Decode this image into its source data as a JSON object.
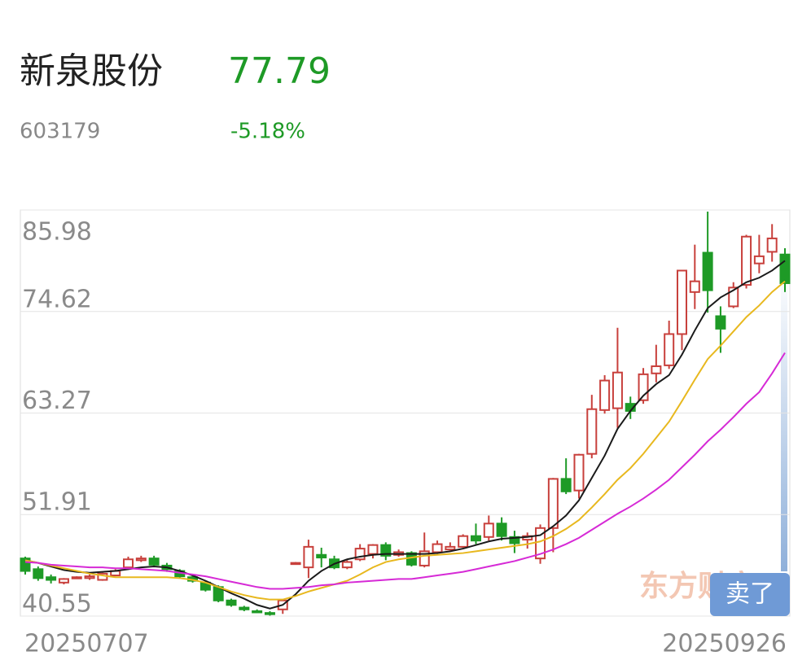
{
  "header": {
    "name": "新泉股份",
    "price": "77.79",
    "code": "603179",
    "change": "-5.18%"
  },
  "watermark": "东方财富",
  "sell_button": "卖了",
  "chart_data": {
    "type": "candlestick",
    "categories": [
      "20250707",
      null,
      null,
      null,
      null,
      null,
      null,
      null,
      null,
      null,
      null,
      null,
      null,
      null,
      null,
      null,
      null,
      null,
      null,
      null,
      null,
      null,
      null,
      null,
      null,
      null,
      null,
      null,
      null,
      null,
      null,
      null,
      null,
      null,
      null,
      null,
      null,
      null,
      null,
      null,
      null,
      null,
      null,
      null,
      null,
      null,
      null,
      null,
      null,
      null,
      null,
      null,
      null,
      null,
      null,
      null,
      null,
      null,
      null,
      "20250926"
    ],
    "open": [
      47.0,
      45.8,
      44.9,
      44.3,
      44.8,
      44.8,
      44.6,
      45.1,
      46.0,
      46.8,
      47.0,
      46.2,
      45.6,
      44.9,
      44.3,
      43.8,
      42.3,
      41.5,
      41.1,
      40.9,
      41.3,
      46.4,
      46.0,
      47.4,
      46.9,
      46.0,
      46.9,
      47.5,
      48.5,
      47.4,
      47.6,
      46.2,
      47.7,
      48.0,
      48.3,
      49.5,
      49.4,
      50.9,
      49.4,
      49.1,
      47.0,
      50.4,
      55.9,
      54.6,
      58.7,
      63.6,
      63.8,
      64.3,
      64.7,
      67.7,
      68.6,
      72.1,
      76.8,
      81.2,
      74.1,
      75.2,
      77.6,
      80.0,
      81.3,
      81.0
    ],
    "high": [
      47.2,
      46.1,
      45.2,
      44.8,
      45.0,
      45.2,
      45.4,
      45.8,
      47.2,
      47.3,
      47.3,
      46.5,
      45.8,
      45.1,
      44.5,
      44.0,
      42.5,
      41.7,
      41.3,
      41.1,
      42.4,
      46.6,
      49.1,
      48.2,
      47.3,
      46.8,
      48.6,
      48.6,
      48.8,
      48.0,
      47.8,
      49.9,
      49.0,
      48.8,
      49.7,
      50.9,
      51.8,
      51.6,
      50.1,
      49.9,
      50.8,
      56.0,
      58.2,
      58.7,
      65.3,
      67.5,
      72.8,
      65.1,
      68.3,
      70.9,
      73.6,
      79.2,
      82.1,
      85.8,
      75.2,
      77.9,
      83.2,
      83.2,
      84.4,
      81.7
    ],
    "low": [
      45.2,
      44.5,
      44.2,
      44.1,
      44.7,
      44.6,
      44.5,
      45.0,
      45.8,
      46.6,
      46.1,
      45.5,
      44.8,
      44.3,
      43.3,
      42.1,
      41.6,
      41.1,
      40.9,
      40.6,
      40.8,
      46.3,
      44.8,
      46.0,
      45.8,
      45.8,
      46.7,
      47.0,
      46.8,
      47.2,
      46.1,
      46.0,
      47.5,
      47.9,
      48.2,
      48.6,
      49.0,
      49.0,
      47.6,
      48.1,
      46.4,
      47.7,
      54.2,
      53.7,
      58.2,
      63.2,
      61.6,
      62.6,
      64.3,
      66.7,
      68.2,
      70.3,
      74.9,
      74.5,
      70.0,
      75.0,
      77.2,
      78.9,
      80.2,
      76.8
    ],
    "close": [
      45.6,
      44.8,
      44.6,
      44.7,
      44.9,
      45.0,
      45.3,
      45.6,
      46.9,
      47.0,
      46.3,
      45.8,
      45.0,
      44.5,
      43.5,
      42.3,
      41.8,
      41.3,
      41.0,
      40.8,
      42.3,
      46.5,
      48.3,
      47.1,
      46.0,
      46.6,
      48.1,
      48.5,
      47.3,
      47.7,
      46.3,
      47.8,
      48.6,
      48.3,
      49.5,
      49.0,
      50.9,
      49.5,
      48.7,
      49.5,
      50.4,
      55.9,
      54.5,
      58.6,
      63.7,
      66.9,
      67.8,
      63.5,
      67.6,
      68.5,
      72.1,
      79.2,
      78.0,
      77.0,
      72.7,
      77.3,
      83.0,
      80.8,
      82.8,
      77.79
    ],
    "up_color": "#c8403c",
    "down_color": "#1e9a26",
    "series": [
      {
        "color": "#1a1a1a",
        "values": [
          46.8,
          46.5,
          46.1,
          45.7,
          45.5,
          45.4,
          45.5,
          45.6,
          45.8,
          46.0,
          46.1,
          46.0,
          45.6,
          45.1,
          44.5,
          43.8,
          43.1,
          42.5,
          41.8,
          41.4,
          41.8,
          43.0,
          44.5,
          45.6,
          46.4,
          46.9,
          47.2,
          47.4,
          47.5,
          47.5,
          47.5,
          47.5,
          47.6,
          47.8,
          48.1,
          48.5,
          48.9,
          49.2,
          49.3,
          49.4,
          49.6,
          50.6,
          51.8,
          53.5,
          56.0,
          58.5,
          61.5,
          63.5,
          65.2,
          66.5,
          67.5,
          69.8,
          72.5,
          75.0,
          76.2,
          77.0,
          77.9,
          78.4,
          79.2,
          80.3
        ]
      },
      {
        "color": "#e8b81e",
        "values": [
          46.8,
          46.5,
          46.2,
          45.9,
          45.6,
          45.3,
          45.1,
          44.9,
          44.9,
          44.9,
          44.9,
          44.9,
          44.8,
          44.6,
          44.3,
          43.8,
          43.3,
          42.9,
          42.6,
          42.4,
          42.4,
          42.8,
          43.3,
          43.7,
          44.1,
          44.5,
          45.2,
          46.0,
          46.6,
          46.9,
          47.1,
          47.3,
          47.4,
          47.5,
          47.6,
          47.8,
          48.0,
          48.2,
          48.4,
          48.6,
          48.9,
          49.5,
          50.3,
          51.3,
          52.7,
          54.2,
          55.8,
          57.1,
          58.7,
          60.5,
          62.3,
          64.6,
          67.0,
          69.3,
          70.8,
          72.4,
          74.0,
          75.3,
          76.8,
          78.0
        ]
      },
      {
        "color": "#d62ad6",
        "values": [
          46.6,
          46.5,
          46.3,
          46.2,
          46.1,
          46.0,
          46.0,
          45.9,
          45.9,
          45.8,
          45.7,
          45.6,
          45.4,
          45.2,
          45.0,
          44.7,
          44.4,
          44.1,
          43.8,
          43.6,
          43.6,
          43.7,
          43.8,
          44.0,
          44.1,
          44.3,
          44.4,
          44.5,
          44.6,
          44.7,
          44.7,
          44.9,
          45.1,
          45.3,
          45.5,
          45.8,
          46.1,
          46.4,
          46.7,
          47.1,
          47.5,
          48.0,
          48.6,
          49.3,
          50.2,
          51.1,
          52.0,
          52.8,
          53.7,
          54.7,
          55.8,
          57.2,
          58.6,
          60.1,
          61.4,
          62.8,
          64.3,
          65.6,
          67.7,
          70.0
        ]
      }
    ],
    "ylim": [
      40.55,
      85.98
    ],
    "yticks": [
      85.98,
      74.62,
      63.27,
      51.91,
      40.55
    ],
    "grid": true
  }
}
